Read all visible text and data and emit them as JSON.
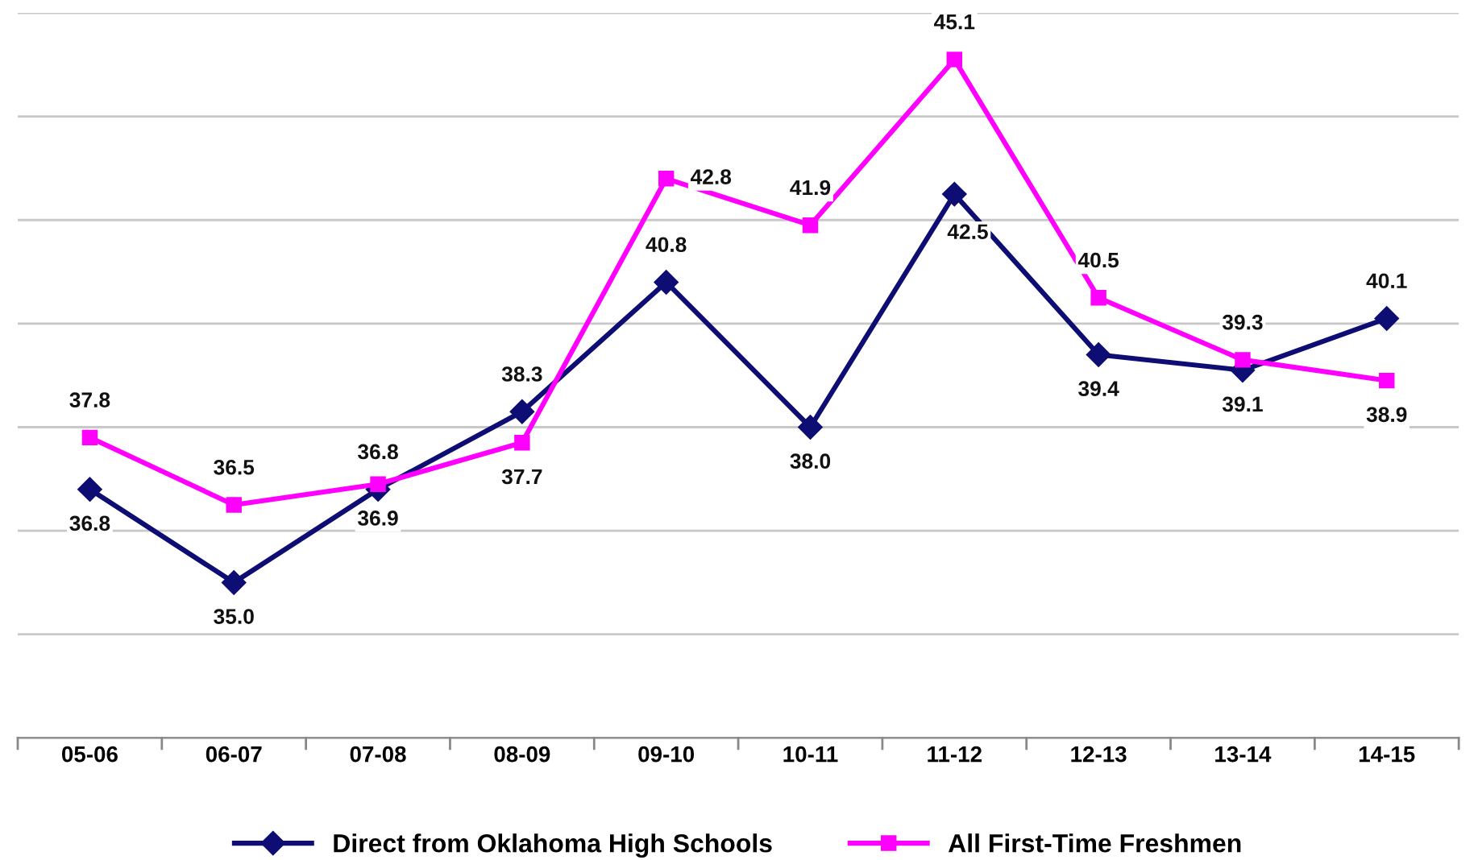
{
  "chart_data": {
    "type": "line",
    "categories": [
      "05-06",
      "06-07",
      "07-08",
      "08-09",
      "09-10",
      "10-11",
      "11-12",
      "12-13",
      "13-14",
      "14-15"
    ],
    "series": [
      {
        "name": "Direct from Oklahoma High Schools",
        "color": "#0d0d73",
        "marker": "diamond",
        "values": [
          36.8,
          35.0,
          36.8,
          38.3,
          40.8,
          38.0,
          42.5,
          39.4,
          39.1,
          40.1
        ],
        "value_labels": [
          "36.8",
          "35.0",
          "36.8",
          "38.3",
          "40.8",
          "38.0",
          "42.5",
          "39.4",
          "39.1",
          "40.1"
        ]
      },
      {
        "name": "All First-Time Freshmen",
        "color": "#ff00ff",
        "marker": "square",
        "values": [
          37.8,
          36.5,
          36.9,
          37.7,
          42.8,
          41.9,
          45.1,
          40.5,
          39.3,
          38.9
        ],
        "value_labels": [
          "37.8",
          "36.5",
          "36.9",
          "37.7",
          "42.8",
          "41.9",
          "45.1",
          "40.5",
          "39.3",
          "38.9"
        ]
      }
    ],
    "ylim": [
      32,
      46
    ],
    "yticks": [
      {
        "value": 32,
        "label": null
      },
      {
        "value": 34,
        "label": null
      },
      {
        "value": 36,
        "label": null
      },
      {
        "value": 38,
        "label": null
      },
      {
        "value": 40,
        "label": null
      },
      {
        "value": 42,
        "label": null
      },
      {
        "value": 44,
        "label": null
      },
      {
        "value": 46,
        "label": null
      }
    ],
    "tick_labels": "x",
    "grid": "y",
    "legend": "bottom",
    "line_style": "solid"
  }
}
